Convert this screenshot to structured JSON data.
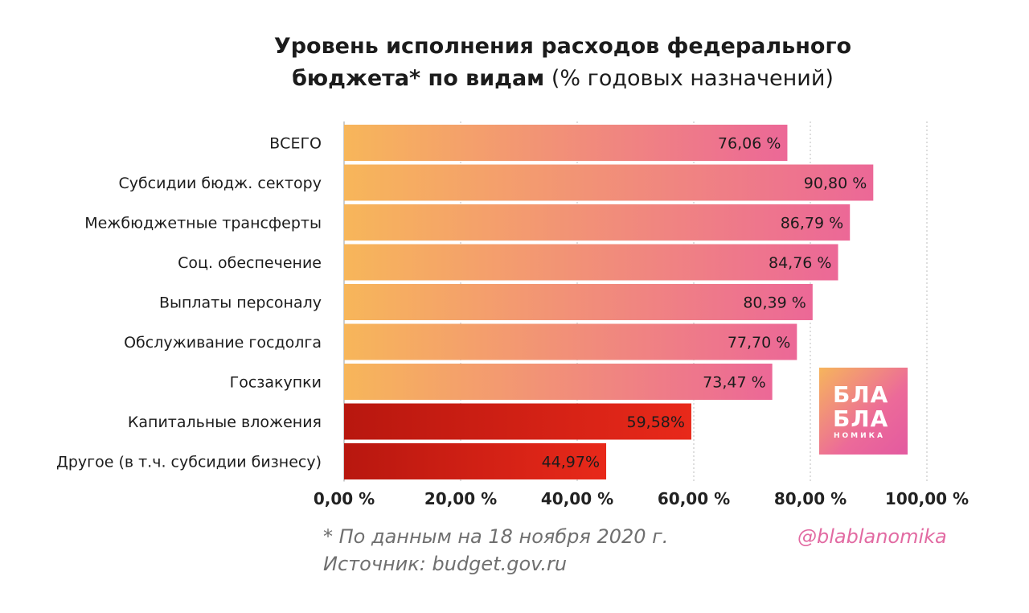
{
  "chart_data": {
    "type": "bar",
    "orientation": "horizontal",
    "title": "Уровень исполнения расходов федерального",
    "title_line2_bold": "бюджета* по видам",
    "title_line2_normal": "(% годовых назначений)",
    "categories": [
      "ВСЕГО",
      "Субсидии бюдж. сектору",
      "Межбюджетные трансферты",
      "Соц. обеспечение",
      "Выплаты персоналу",
      "Обслуживание госдолга",
      "Госзакупки",
      "Капитальные вложения",
      "Другое (в т.ч. субсидии бизнесу)"
    ],
    "values": [
      76.06,
      90.8,
      86.79,
      84.76,
      80.39,
      77.7,
      73.47,
      59.58,
      44.97
    ],
    "data_labels": [
      "76,06 %",
      "90,80 %",
      "86,79 %",
      "84,76 %",
      "80,39 %",
      "77,70 %",
      "73,47 %",
      "59,58%",
      "44,97%"
    ],
    "highlighted": [
      false,
      false,
      false,
      false,
      false,
      false,
      false,
      true,
      true
    ],
    "x_ticks": [
      0,
      20,
      40,
      60,
      80,
      100
    ],
    "x_tick_labels": [
      "0,00 %",
      "20,00 %",
      "40,00 %",
      "60,00 %",
      "80,00 %",
      "100,00 %"
    ],
    "xlim": [
      0,
      100
    ],
    "grid": "vertical dotted",
    "colors": {
      "gradient_start": "#f7b65a",
      "gradient_end": "#ec6897",
      "highlight_start": "#b8170f",
      "highlight_end": "#e8291a"
    }
  },
  "footnote_date": "* По данным на 18 ноября 2020 г.",
  "footnote_source": "Источник: budget.gov.ru",
  "handle": "@blablanomika",
  "logo": {
    "line1": "БЛА",
    "line2": "БЛА",
    "line3": "НОМИКА",
    "colors": [
      "#f6b55c",
      "#e35aa0"
    ]
  }
}
